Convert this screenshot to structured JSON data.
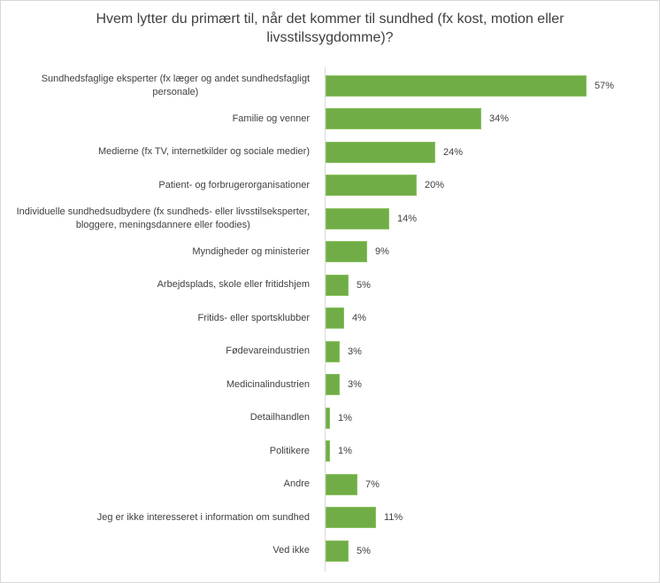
{
  "page": {
    "background": "#ffffff",
    "frame_color": "#d7d7d7"
  },
  "chart_data": {
    "type": "bar",
    "orientation": "horizontal",
    "title": "Hvem lytter du primært til, når det kommer til sundhed (fx kost, motion eller livsstilssygdomme)?",
    "categories": [
      "Sundhedsfaglige eksperter (fx læger og andet sundhedsfagligt\npersonale)",
      "Familie og venner",
      "Medierne (fx TV, internetkilder og sociale medier)",
      "Patient- og forbrugerorganisationer",
      "Individuelle sundhedsudbydere (fx sundheds- eller livsstilseksperter,\nbloggere, meningsdannere eller foodies)",
      "Myndigheder og ministerier",
      "Arbejdsplads, skole eller fritidshjem",
      "Fritids- eller sportsklubber",
      "Fødevareindustrien",
      "Medicinalindustrien",
      "Detailhandlen",
      "Politikere",
      "Andre",
      "Jeg er ikke interesseret i information om sundhed",
      "Ved ikke"
    ],
    "values": [
      57,
      34,
      24,
      20,
      14,
      9,
      5,
      4,
      3,
      3,
      1,
      1,
      7,
      11,
      5
    ],
    "value_labels": [
      "57%",
      "34%",
      "24%",
      "20%",
      "14%",
      "9%",
      "5%",
      "4%",
      "3%",
      "3%",
      "1%",
      "1%",
      "7%",
      "11%",
      "5%"
    ],
    "xlabel": "",
    "ylabel": "",
    "xlim": [
      0,
      70
    ],
    "grid": "off",
    "legend": "none",
    "data_labels": "outside-end",
    "bar_color": "#70ad47",
    "bar_border_color": "#8cc162",
    "axis_line_color": "#d9d9d9",
    "text_color": "#404040"
  }
}
